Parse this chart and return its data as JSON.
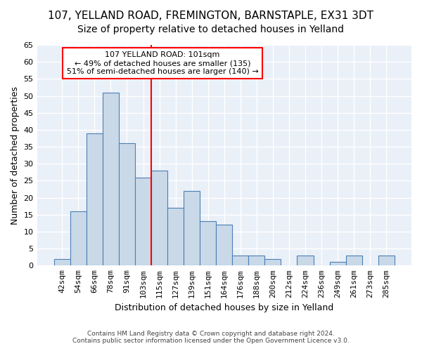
{
  "title1": "107, YELLAND ROAD, FREMINGTON, BARNSTAPLE, EX31 3DT",
  "title2": "Size of property relative to detached houses in Yelland",
  "xlabel": "Distribution of detached houses by size in Yelland",
  "ylabel": "Number of detached properties",
  "footer1": "Contains HM Land Registry data © Crown copyright and database right 2024.",
  "footer2": "Contains public sector information licensed under the Open Government Licence v3.0.",
  "categories": [
    "42sqm",
    "54sqm",
    "66sqm",
    "78sqm",
    "91sqm",
    "103sqm",
    "115sqm",
    "127sqm",
    "139sqm",
    "151sqm",
    "164sqm",
    "176sqm",
    "188sqm",
    "200sqm",
    "212sqm",
    "224sqm",
    "236sqm",
    "249sqm",
    "261sqm",
    "273sqm",
    "285sqm"
  ],
  "values": [
    2,
    16,
    39,
    51,
    36,
    26,
    28,
    17,
    22,
    13,
    12,
    3,
    3,
    2,
    0,
    3,
    0,
    1,
    3,
    0,
    3
  ],
  "bar_color": "#c9d9e8",
  "bar_edge_color": "#4a7fb5",
  "vline_x": 5.5,
  "vline_color": "red",
  "annotation_text": "107 YELLAND ROAD: 101sqm\n← 49% of detached houses are smaller (135)\n51% of semi-detached houses are larger (140) →",
  "annotation_box_color": "white",
  "annotation_box_edge": "red",
  "ylim": [
    0,
    65
  ],
  "yticks": [
    0,
    5,
    10,
    15,
    20,
    25,
    30,
    35,
    40,
    45,
    50,
    55,
    60,
    65
  ],
  "background_color": "#eaf0f8",
  "grid_color": "white",
  "title_fontsize": 11,
  "subtitle_fontsize": 10,
  "axis_label_fontsize": 9,
  "tick_fontsize": 8
}
